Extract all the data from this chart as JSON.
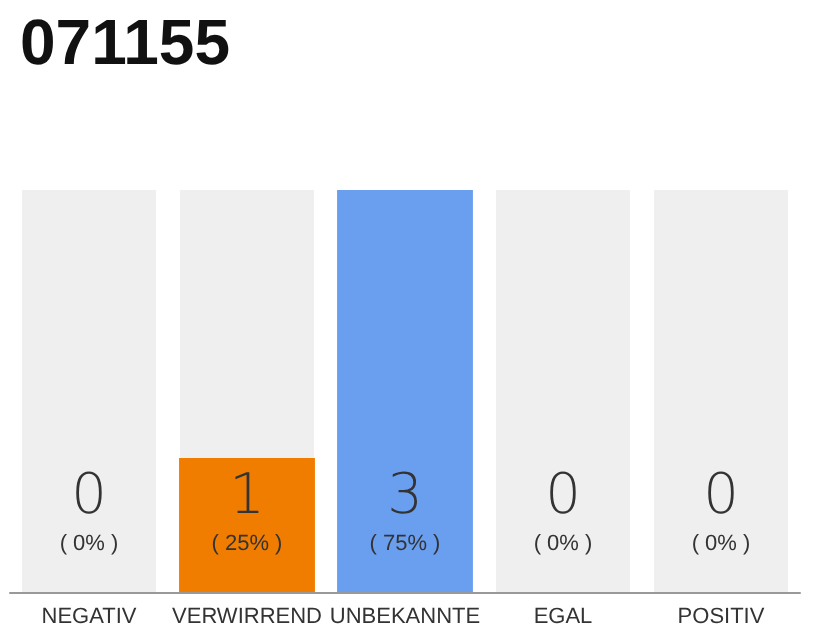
{
  "chart_data": {
    "type": "bar",
    "title": "071155",
    "categories": [
      "NEGATIV",
      "VERWIRREND",
      "UNBEKANNTE",
      "EGAL",
      "POSITIV"
    ],
    "values": [
      0,
      1,
      3,
      0,
      0
    ],
    "colors": [
      "#efefef",
      "#f07d00",
      "#6a9ff0",
      "#efefef",
      "#efefef"
    ],
    "data_labels": true,
    "annotations": [
      "( 0% )",
      "( 25% )",
      "( 75% )",
      "( 0% )",
      "( 0% )"
    ]
  }
}
